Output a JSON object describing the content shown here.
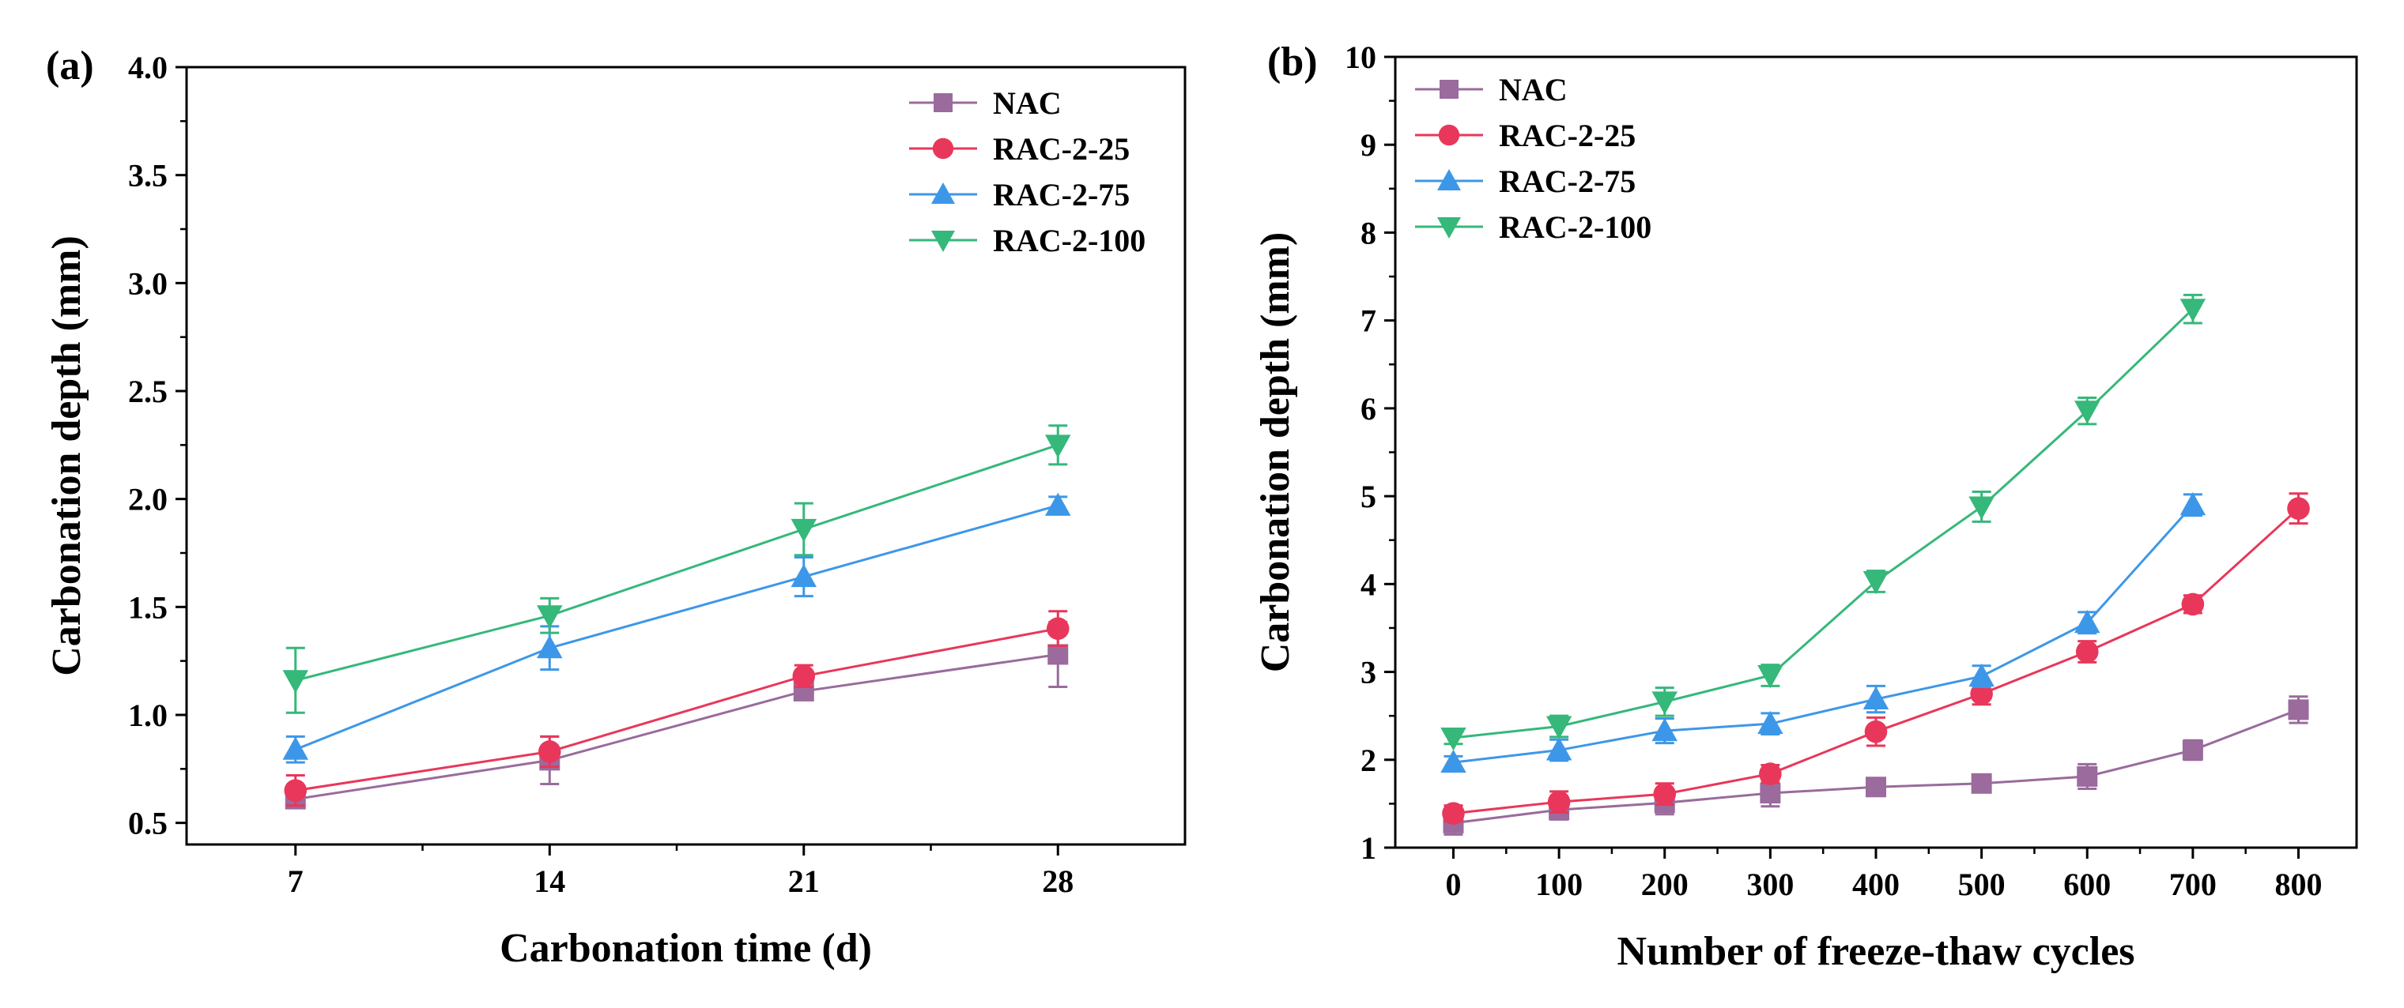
{
  "colors": {
    "NAC": "#9a6b9c",
    "RAC-2-25": "#e8375a",
    "RAC-2-75": "#3d97e8",
    "RAC-2-100": "#35b87a"
  },
  "chart_data": [
    {
      "panel_label": "(a)",
      "type": "line",
      "title": "",
      "xlabel": "Carbonation time (d)",
      "ylabel": "Carbonation depth (mm)",
      "x": [
        7,
        14,
        21,
        28
      ],
      "xlim": [
        4,
        31.5
      ],
      "ylim": [
        0.4,
        4.0
      ],
      "xticks": [
        7,
        14,
        21,
        28
      ],
      "xtick_labels": [
        "7",
        "14",
        "21",
        "28"
      ],
      "yticks": [
        0.5,
        1.0,
        1.5,
        2.0,
        2.5,
        3.0,
        3.5,
        4.0
      ],
      "ytick_labels": [
        "0.5",
        "1.0",
        "1.5",
        "2.0",
        "2.5",
        "3.0",
        "3.5",
        "4.0"
      ],
      "legend_position": "top-right",
      "series": [
        {
          "name": "NAC",
          "marker": "square",
          "values": [
            0.61,
            0.79,
            1.11,
            1.28
          ],
          "errors": [
            0.03,
            0.11,
            0.03,
            0.15
          ]
        },
        {
          "name": "RAC-2-25",
          "marker": "circle",
          "values": [
            0.65,
            0.83,
            1.18,
            1.4
          ],
          "errors": [
            0.07,
            0.07,
            0.05,
            0.08
          ]
        },
        {
          "name": "RAC-2-75",
          "marker": "triangle-up",
          "values": [
            0.84,
            1.31,
            1.64,
            1.97
          ],
          "errors": [
            0.06,
            0.1,
            0.09,
            0.04
          ]
        },
        {
          "name": "RAC-2-100",
          "marker": "triangle-down",
          "values": [
            1.16,
            1.46,
            1.86,
            2.25
          ],
          "errors": [
            0.15,
            0.08,
            0.12,
            0.09
          ]
        }
      ]
    },
    {
      "panel_label": "(b)",
      "type": "line",
      "title": "",
      "xlabel": "Number of freeze-thaw cycles",
      "ylabel": "Carbonation depth (mm)",
      "x": [
        0,
        100,
        200,
        300,
        400,
        500,
        600,
        700,
        800
      ],
      "xlim": [
        -55,
        855
      ],
      "ylim": [
        1,
        10
      ],
      "xticks": [
        0,
        100,
        200,
        300,
        400,
        500,
        600,
        700,
        800
      ],
      "xtick_labels": [
        "0",
        "100",
        "200",
        "300",
        "400",
        "500",
        "600",
        "700",
        "800"
      ],
      "yticks": [
        1,
        2,
        3,
        4,
        5,
        6,
        7,
        8,
        9,
        10
      ],
      "ytick_labels": [
        "1",
        "2",
        "3",
        "4",
        "5",
        "6",
        "7",
        "8",
        "9",
        "10"
      ],
      "legend_position": "top-left",
      "series": [
        {
          "name": "NAC",
          "marker": "square",
          "x": [
            0,
            100,
            200,
            300,
            400,
            500,
            600,
            700,
            800
          ],
          "values": [
            1.28,
            1.43,
            1.51,
            1.62,
            1.69,
            1.73,
            1.81,
            2.11,
            2.57
          ],
          "errors": [
            0.13,
            0.11,
            0.13,
            0.15,
            0.08,
            0.09,
            0.14,
            0.11,
            0.15
          ]
        },
        {
          "name": "RAC-2-25",
          "marker": "circle",
          "x": [
            0,
            100,
            200,
            300,
            400,
            500,
            600,
            700,
            800
          ],
          "values": [
            1.39,
            1.52,
            1.61,
            1.84,
            2.32,
            2.75,
            3.23,
            3.77,
            4.86
          ],
          "errors": [
            0.09,
            0.12,
            0.12,
            0.1,
            0.16,
            0.12,
            0.12,
            0.1,
            0.17
          ]
        },
        {
          "name": "RAC-2-75",
          "marker": "triangle-up",
          "x": [
            0,
            100,
            200,
            300,
            400,
            500,
            600,
            700
          ],
          "values": [
            1.97,
            2.11,
            2.33,
            2.41,
            2.69,
            2.95,
            3.56,
            4.9
          ],
          "errors": [
            0.07,
            0.12,
            0.14,
            0.12,
            0.15,
            0.12,
            0.12,
            0.12
          ]
        },
        {
          "name": "RAC-2-100",
          "marker": "triangle-down",
          "x": [
            0,
            100,
            200,
            300,
            400,
            500,
            600,
            700
          ],
          "values": [
            2.25,
            2.38,
            2.66,
            2.96,
            4.03,
            4.88,
            5.97,
            7.13
          ],
          "errors": [
            0.07,
            0.12,
            0.16,
            0.12,
            0.12,
            0.17,
            0.15,
            0.16
          ]
        }
      ]
    }
  ]
}
